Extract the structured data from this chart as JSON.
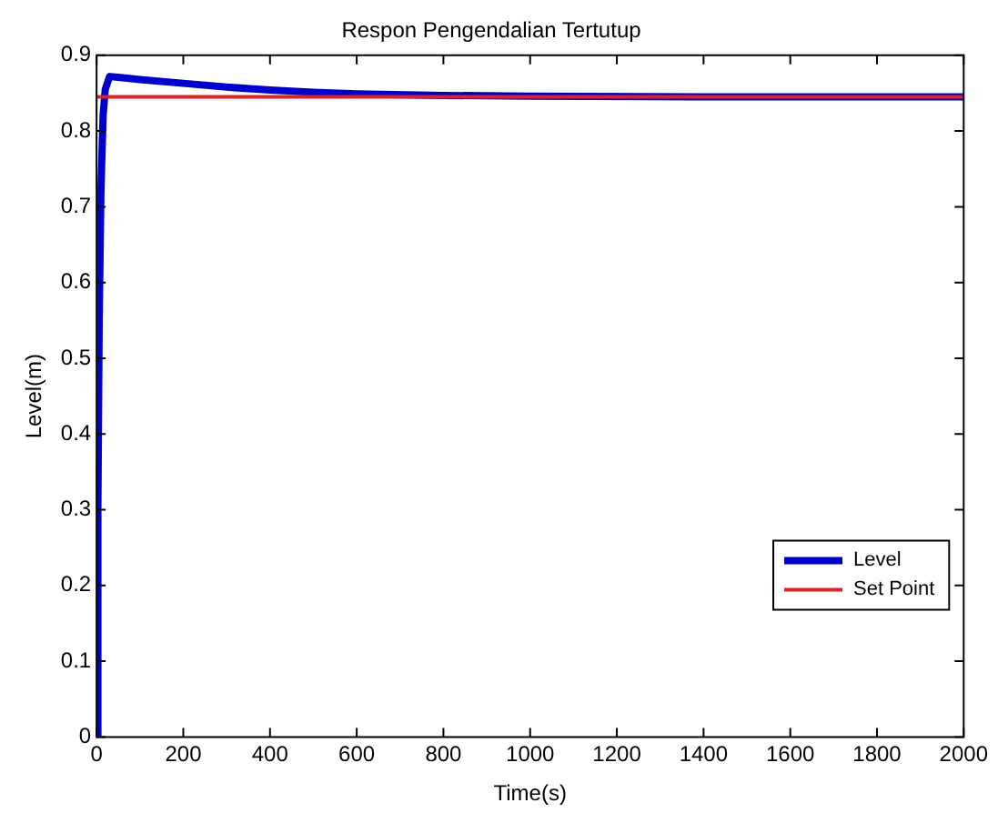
{
  "chart_data": {
    "type": "line",
    "title": "Respon Pengendalian Tertutup",
    "xlabel": "Time(s)",
    "ylabel": "Level(m)",
    "xlim": [
      0,
      2000
    ],
    "xticks": [
      0,
      200,
      400,
      600,
      800,
      1000,
      1200,
      1400,
      1600,
      1800,
      2000
    ],
    "ylim": [
      0,
      0.9
    ],
    "yticks": [
      0,
      0.1,
      0.2,
      0.3,
      0.4,
      0.5,
      0.6,
      0.7,
      0.8,
      0.9
    ],
    "grid": false,
    "legend": "bottom right",
    "marker": "none",
    "line_style": "solid",
    "series": [
      {
        "name": "Level",
        "color": "#0000cc",
        "x": [
          0,
          3,
          6,
          10,
          15,
          20,
          30,
          50,
          100,
          200,
          300,
          400,
          500,
          600,
          800,
          1000,
          1500,
          2000
        ],
        "values": [
          0,
          0.3,
          0.55,
          0.72,
          0.82,
          0.855,
          0.872,
          0.871,
          0.868,
          0.863,
          0.858,
          0.854,
          0.851,
          0.849,
          0.847,
          0.846,
          0.845,
          0.845
        ]
      },
      {
        "name": "Set Point",
        "color": "#dd2222",
        "x": [
          0,
          2000
        ],
        "values": [
          0.845,
          0.845
        ]
      }
    ]
  }
}
